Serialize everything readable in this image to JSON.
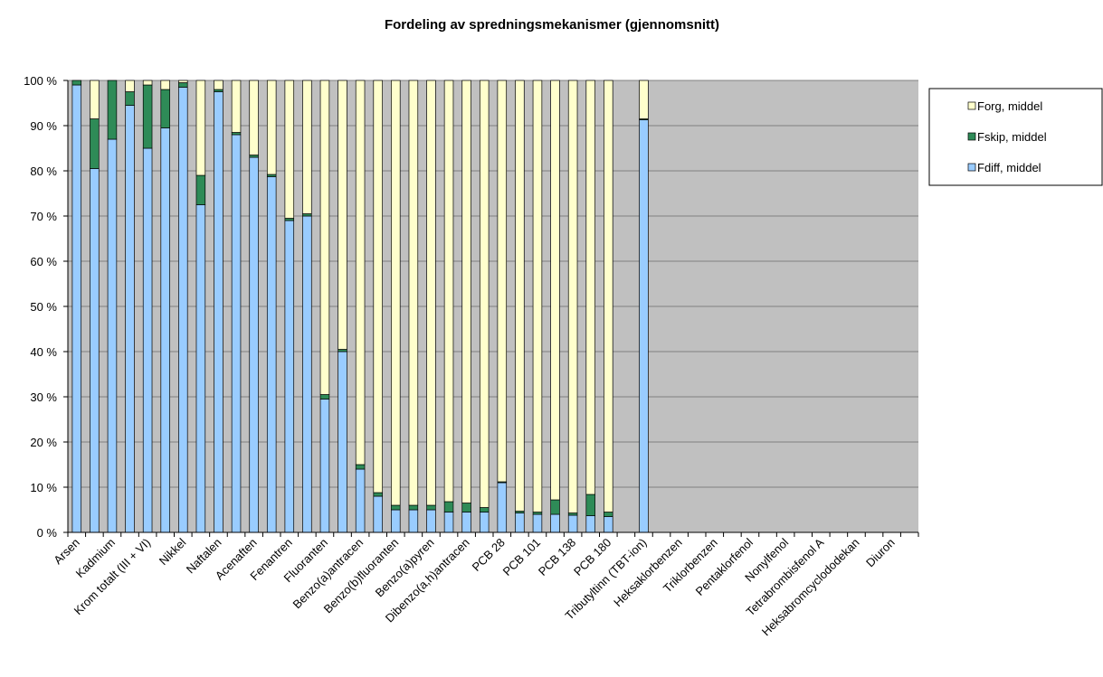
{
  "chart_data": {
    "type": "stacked_bar",
    "title": "Fordeling av spredningsmekanismer (gjennomsnitt)",
    "categories": [
      "Arsen",
      null,
      "Kadmium",
      null,
      "Krom totalt (III + VI)",
      null,
      "Nikkel",
      null,
      "Naftalen",
      null,
      "Acenaften",
      null,
      "Fenantren",
      null,
      "Fluoranten",
      null,
      "Benzo(a)antracen",
      null,
      "Benzo(b)fluoranten",
      null,
      "Benzo(a)pyren",
      null,
      "Dibenzo(a,h)antracen",
      null,
      "PCB 28",
      null,
      "PCB 101",
      null,
      "PCB 138",
      null,
      "PCB 180",
      null,
      "Tributyltinn (TBT-ion)",
      null,
      "Heksaklorbenzen",
      null,
      "Triklorbenzen",
      null,
      "Pentaklorfenol",
      null,
      "Nonylfenol",
      null,
      "Tetrabrombisfenol A",
      null,
      "Heksabromcyclododekan",
      null,
      "Diuron",
      null
    ],
    "series": [
      {
        "name": "Fdiff, middel",
        "color": "#99ccff",
        "values": [
          99,
          80.5,
          87,
          94.5,
          85,
          89.5,
          98.5,
          72.5,
          97.5,
          88,
          83,
          78.7,
          69,
          70,
          29.5,
          40,
          14,
          8,
          5,
          5,
          5,
          4.5,
          4.5,
          4.5,
          11,
          4.3,
          4,
          4,
          3.8,
          3.7,
          3.5,
          null,
          91.3,
          null,
          null,
          null,
          null,
          null,
          null,
          null,
          null,
          null,
          null,
          null,
          null,
          null,
          null,
          null
        ]
      },
      {
        "name": "Fskip, middel",
        "color": "#2e8b57",
        "values": [
          1,
          11,
          13,
          3,
          14,
          8.5,
          1,
          6.5,
          0.5,
          0.5,
          0.5,
          0.5,
          0.5,
          0.5,
          1,
          0.5,
          1,
          0.8,
          1,
          1,
          1,
          2.3,
          2,
          1,
          0.2,
          0.4,
          0.5,
          3.2,
          0.5,
          4.7,
          1,
          null,
          0.2,
          null,
          null,
          null,
          null,
          null,
          null,
          null,
          null,
          null,
          null,
          null,
          null,
          null,
          null,
          null
        ]
      },
      {
        "name": "Forg, middel",
        "color": "#ffffcc",
        "values": [
          0,
          8.5,
          0,
          2.5,
          1,
          2,
          0.5,
          21,
          2,
          11.5,
          16.5,
          20.8,
          30.5,
          29.5,
          69.5,
          59.5,
          85,
          91.2,
          94,
          94,
          94,
          93.2,
          93.5,
          94.5,
          88.8,
          95.3,
          95.5,
          92.8,
          95.7,
          91.6,
          95.5,
          null,
          8.5,
          null,
          null,
          null,
          null,
          null,
          null,
          null,
          null,
          null,
          null,
          null,
          null,
          null,
          null,
          null
        ]
      }
    ],
    "ylim": [
      0,
      100
    ],
    "yticks": [
      {
        "value": 0,
        "label": "0 %"
      },
      {
        "value": 10,
        "label": "10 %"
      },
      {
        "value": 20,
        "label": "20 %"
      },
      {
        "value": 30,
        "label": "30 %"
      },
      {
        "value": 40,
        "label": "40 %"
      },
      {
        "value": 50,
        "label": "50 %"
      },
      {
        "value": 60,
        "label": "60 %"
      },
      {
        "value": 70,
        "label": "70 %"
      },
      {
        "value": 80,
        "label": "80 %"
      },
      {
        "value": 90,
        "label": "90 %"
      },
      {
        "value": 100,
        "label": "100 %"
      }
    ],
    "grid": true,
    "legend": "right"
  }
}
